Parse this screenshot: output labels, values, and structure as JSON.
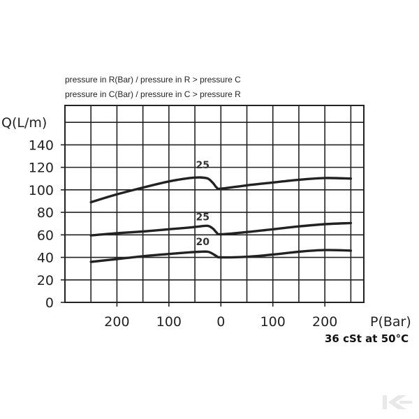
{
  "chart_data": {
    "type": "line",
    "notes": [
      "pressure in R(Bar) / pressure in R > pressure C",
      "pressure in C(Bar) / pressure in C > pressure R"
    ],
    "ylabel": "Q(L/m)",
    "xlabel": "P(Bar)",
    "condition": "36 cSt at 50°C",
    "x_tick_labels": [
      "200",
      "100",
      "0",
      "100",
      "200"
    ],
    "x_tick_values": [
      -200,
      -100,
      0,
      100,
      200
    ],
    "y_tick_labels": [
      "0",
      "20",
      "40",
      "60",
      "80",
      "100",
      "120",
      "140"
    ],
    "y_tick_values": [
      0,
      20,
      40,
      60,
      80,
      100,
      120,
      140
    ],
    "xlim": [
      -300,
      275
    ],
    "ylim": [
      0,
      175
    ],
    "grid": true,
    "series": [
      {
        "name": "25",
        "label_at": [
          -35,
          119
        ],
        "x": [
          -250,
          -200,
          -150,
          -100,
          -60,
          -40,
          -25,
          -15,
          -8,
          0,
          50,
          100,
          150,
          200,
          250
        ],
        "y": [
          89,
          96,
          102,
          107.5,
          110.5,
          111,
          110,
          106,
          102,
          101,
          104,
          106.5,
          109,
          110.5,
          110
        ]
      },
      {
        "name": "25",
        "label_at": [
          -35,
          73
        ],
        "x": [
          -250,
          -200,
          -150,
          -100,
          -60,
          -40,
          -25,
          -15,
          -8,
          0,
          50,
          100,
          150,
          200,
          250
        ],
        "y": [
          59.5,
          61.5,
          63,
          65,
          66.5,
          67.5,
          68,
          65.5,
          62,
          60.5,
          62.5,
          65,
          67.5,
          69.5,
          70.5
        ]
      },
      {
        "name": "20",
        "label_at": [
          -35,
          51
        ],
        "x": [
          -250,
          -200,
          -150,
          -100,
          -60,
          -40,
          -25,
          -15,
          -8,
          0,
          50,
          100,
          150,
          200,
          250
        ],
        "y": [
          36,
          38.5,
          41,
          43,
          44.5,
          45,
          45,
          43,
          41,
          40,
          40.5,
          42.5,
          45,
          46.5,
          46
        ]
      }
    ],
    "line_color": "#222222"
  }
}
